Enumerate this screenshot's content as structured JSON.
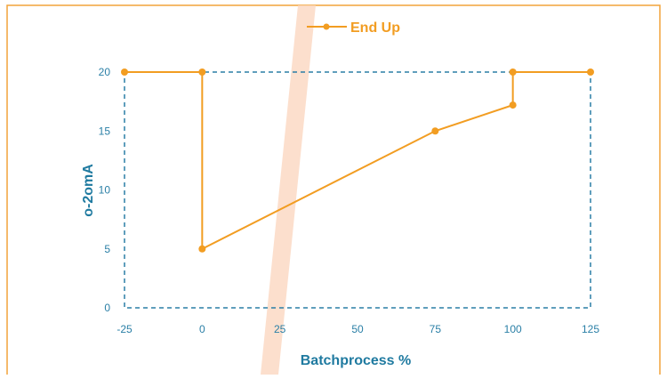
{
  "chart_data": {
    "type": "line",
    "title": "",
    "xlabel": "Batchprocess %",
    "ylabel": "o-2omA",
    "xlim": [
      -25,
      125
    ],
    "ylim": [
      0,
      20
    ],
    "xticks": [
      -25,
      0,
      25,
      50,
      75,
      100,
      125
    ],
    "yticks": [
      0,
      5,
      10,
      15,
      20
    ],
    "grid": false,
    "legend_position": "top-center",
    "series": [
      {
        "name": "End Up",
        "x": [
          -25,
          0,
          0,
          75,
          100,
          100,
          125
        ],
        "y": [
          20,
          20,
          5,
          15,
          17.2,
          20,
          20
        ]
      }
    ]
  },
  "colors": {
    "frame": "#f2a33a",
    "series": "#f29d22",
    "plot_border": "#2a7fa6",
    "axis_title": "#1f7aa0",
    "tick_label": "#2a7fa6",
    "watermark": "#fbd7c0"
  }
}
